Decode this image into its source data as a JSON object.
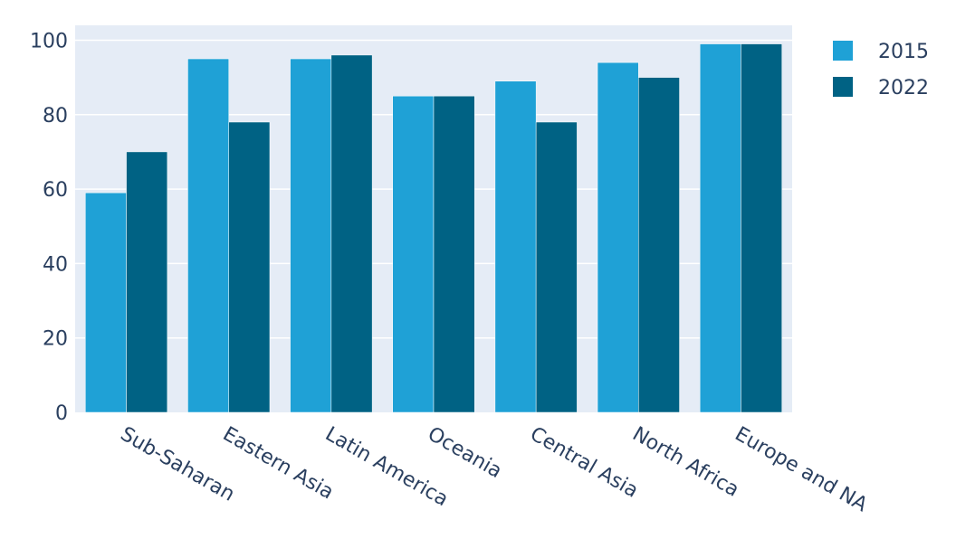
{
  "chart_data": {
    "type": "bar",
    "categories": [
      "Sub-Saharan",
      "Eastern Asia",
      "Latin America",
      "Oceania",
      "Central Asia",
      "North Africa",
      "Europe and NA"
    ],
    "series": [
      {
        "name": "2015",
        "color": "#1fa1d6",
        "values": [
          59,
          95,
          95,
          85,
          89,
          94,
          99
        ]
      },
      {
        "name": "2022",
        "color": "#006284",
        "values": [
          70,
          78,
          96,
          85,
          78,
          90,
          99
        ]
      }
    ],
    "title": "",
    "xlabel": "",
    "ylabel": "",
    "ylim": [
      0,
      104
    ],
    "yticks": [
      0,
      20,
      40,
      60,
      80,
      100
    ],
    "grid": true,
    "legend_position": "top-right",
    "plot_background": "#e5ecf6"
  }
}
